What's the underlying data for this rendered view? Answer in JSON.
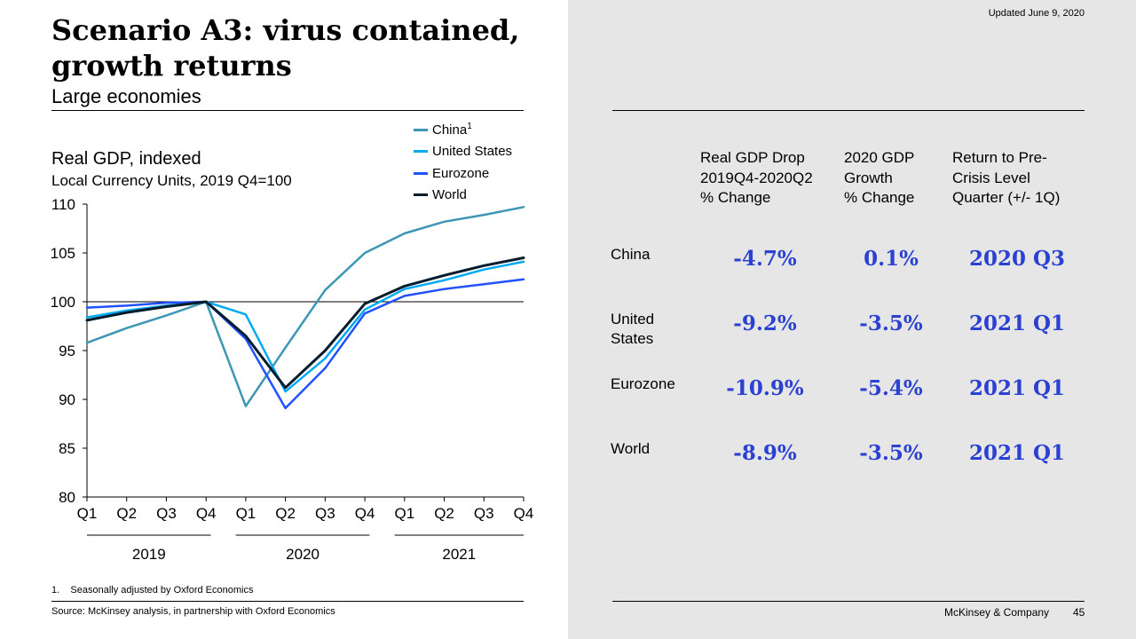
{
  "header": {
    "title": "Scenario A3: virus contained, growth returns",
    "subtitle": "Large economies",
    "updated": "Updated June 9, 2020"
  },
  "chart_data": {
    "type": "line",
    "title": "Real GDP, indexed",
    "subtitle": "Local Currency Units, 2019 Q4=100",
    "x": [
      "Q1",
      "Q2",
      "Q3",
      "Q4",
      "Q1",
      "Q2",
      "Q3",
      "Q4",
      "Q1",
      "Q2",
      "Q3",
      "Q4"
    ],
    "year_groups": [
      {
        "label": "2019",
        "quarters": 4
      },
      {
        "label": "2020",
        "quarters": 4
      },
      {
        "label": "2021",
        "quarters": 4
      }
    ],
    "ylim": [
      80,
      110
    ],
    "yticks": [
      80,
      85,
      90,
      95,
      100,
      105,
      110
    ],
    "reference_line": 100,
    "grid": false,
    "legend_position": "top-right",
    "series": [
      {
        "name": "China",
        "superscript": "1",
        "color": "#3c96b4",
        "values": [
          95.8,
          97.3,
          98.6,
          100.0,
          89.3,
          95.3,
          101.2,
          105.0,
          107.0,
          108.2,
          108.9,
          109.7
        ]
      },
      {
        "name": "United States",
        "color": "#00a9f4",
        "values": [
          98.4,
          99.1,
          99.6,
          100.0,
          98.7,
          90.8,
          94.2,
          99.2,
          101.3,
          102.2,
          103.3,
          104.1
        ]
      },
      {
        "name": "Eurozone",
        "color": "#2251ff",
        "values": [
          99.4,
          99.6,
          99.9,
          100.0,
          96.2,
          89.1,
          93.2,
          98.8,
          100.6,
          101.3,
          101.8,
          102.3
        ]
      },
      {
        "name": "World",
        "color": "#051c2c",
        "values": [
          98.1,
          98.9,
          99.5,
          100.0,
          96.5,
          91.2,
          95.0,
          99.8,
          101.6,
          102.7,
          103.7,
          104.5
        ]
      }
    ]
  },
  "footnote": {
    "num": "1.",
    "text": "Seasonally adjusted by Oxford Economics"
  },
  "source": "Source: McKinsey analysis, in partnership with Oxford Economics",
  "table": {
    "columns": [
      {
        "lines": [
          "Real GDP Drop",
          "2019Q4-2020Q2",
          "% Change"
        ]
      },
      {
        "lines": [
          "2020 GDP",
          "Growth",
          "% Change"
        ]
      },
      {
        "lines": [
          "Return to Pre-",
          "Crisis Level",
          "Quarter (+/- 1Q)"
        ]
      }
    ],
    "rows": [
      {
        "label": [
          "China"
        ],
        "drop": "-4.7%",
        "growth": "0.1%",
        "return": "2020 Q3"
      },
      {
        "label": [
          "United",
          "States"
        ],
        "drop": "-9.2%",
        "growth": "-3.5%",
        "return": "2021 Q1"
      },
      {
        "label": [
          "Eurozone"
        ],
        "drop": "-10.9%",
        "growth": "-5.4%",
        "return": "2021 Q1"
      },
      {
        "label": [
          "World"
        ],
        "drop": "-8.9%",
        "growth": "-3.5%",
        "return": "2021 Q1"
      }
    ]
  },
  "footer": {
    "brand": "McKinsey & Company",
    "page": "45"
  },
  "colors": {
    "accent": "#2a41d1",
    "right_panel_bg": "#e6e6e6"
  }
}
